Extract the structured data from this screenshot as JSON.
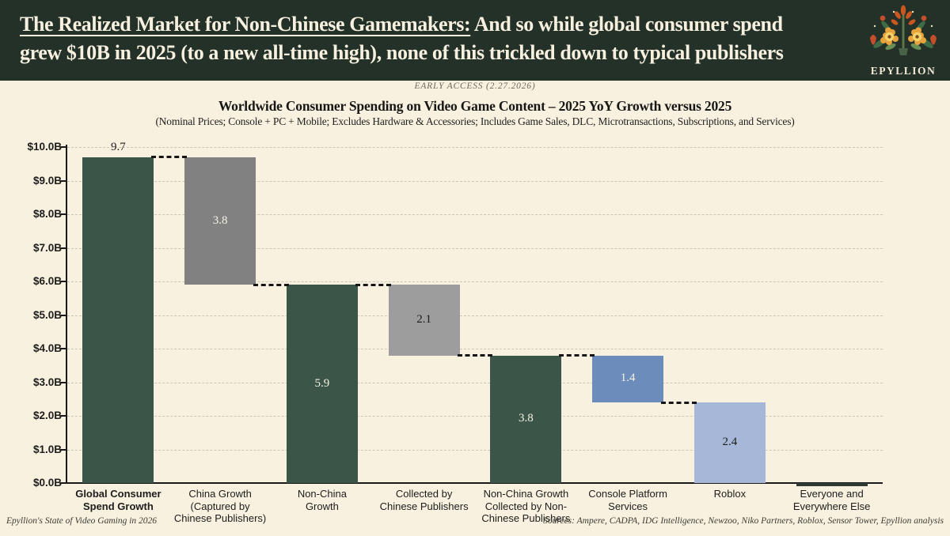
{
  "header": {
    "title_underlined": "The Realized Market for Non-Chinese Gamemakers:",
    "title_rest_line1": " And so while global consumer spend",
    "title_line2": "grew $10B in 2025 (to a new all-time high), none of this trickled down to typical publishers",
    "logo_text": "EPYLLION",
    "banner_color": "#233129",
    "banner_text_color": "#f7f0de"
  },
  "subheader": {
    "early_access": "EARLY ACCESS (2.27.2026)",
    "title": "Worldwide Consumer Spending on Video Game Content – 2025 YoY Growth versus 2025",
    "subtitle": "(Nominal Prices; Console + PC + Mobile; Excludes Hardware & Accessories; Includes Game Sales, DLC, Microtransactions, Subscriptions, and Services)"
  },
  "chart_data": {
    "type": "bar",
    "subtype": "waterfall",
    "title": "Worldwide Consumer Spending on Video Game Content – 2025 YoY Growth versus 2025",
    "ylim": [
      0,
      10
    ],
    "grid": "dashed-horizontal",
    "ytick_labels": [
      "$0.0B",
      "$1.0B",
      "$2.0B",
      "$3.0B",
      "$4.0B",
      "$5.0B",
      "$6.0B",
      "$7.0B",
      "$8.0B",
      "$9.0B",
      "$10.0B"
    ],
    "bars": [
      {
        "category": "Global Consumer\nSpend Growth",
        "bold_category": true,
        "value": 9.7,
        "base": 0,
        "top": 9.7,
        "color": "#3b5648",
        "label": "9.7",
        "label_color": "#1d1d1b",
        "label_position": "above"
      },
      {
        "category": "China Growth\n(Captured by\nChinese Publishers)",
        "bold_category": false,
        "value": 3.8,
        "base": 5.9,
        "top": 9.7,
        "color": "#818181",
        "label": "3.8",
        "label_color": "#f7f2e4",
        "label_position": "inside"
      },
      {
        "category": "Non-China\nGrowth",
        "bold_category": false,
        "value": 5.9,
        "base": 0,
        "top": 5.9,
        "color": "#3b5648",
        "label": "5.9",
        "label_color": "#f7f2e4",
        "label_position": "inside"
      },
      {
        "category": "Collected by\nChinese Publishers",
        "bold_category": false,
        "value": 2.1,
        "base": 3.8,
        "top": 5.9,
        "color": "#9d9d9d",
        "label": "2.1",
        "label_color": "#1d1d1b",
        "label_position": "inside"
      },
      {
        "category": "Non-China Growth\nCollected by Non-\nChinese Publishers",
        "bold_category": false,
        "value": 3.8,
        "base": 0,
        "top": 3.8,
        "color": "#3b5648",
        "label": "3.8",
        "label_color": "#f7f2e4",
        "label_position": "inside"
      },
      {
        "category": "Console Platform\nServices",
        "bold_category": false,
        "value": 1.4,
        "base": 2.4,
        "top": 3.8,
        "color": "#6c8dbb",
        "label": "1.4",
        "label_color": "#f7f2e4",
        "label_position": "inside"
      },
      {
        "category": "Roblox",
        "bold_category": false,
        "value": 2.4,
        "base": 0,
        "top": 2.4,
        "color": "#a6b7d7",
        "label": "2.4",
        "label_color": "#1d1d1b",
        "label_position": "inside"
      },
      {
        "category": "Everyone and\nEverywhere Else",
        "bold_category": false,
        "value": 0.0,
        "base": 0,
        "top": 0.0,
        "color": "#2d3b32",
        "label": "",
        "label_color": "#1d1d1b",
        "label_position": "none"
      }
    ],
    "connectors": [
      {
        "from": 0,
        "to": 1,
        "level": 9.7
      },
      {
        "from": 1,
        "to": 2,
        "level": 5.9
      },
      {
        "from": 2,
        "to": 3,
        "level": 5.9
      },
      {
        "from": 3,
        "to": 4,
        "level": 3.8
      },
      {
        "from": 4,
        "to": 5,
        "level": 3.8
      },
      {
        "from": 5,
        "to": 6,
        "level": 2.4
      }
    ]
  },
  "footer": {
    "left": "Epyllion's State of Video Gaming in 2026",
    "right": "Sources: Ampere, CADPA, IDG Intelligence, Newzoo, Niko Partners, Roblox, Sensor Tower, Epyllion analysis"
  }
}
